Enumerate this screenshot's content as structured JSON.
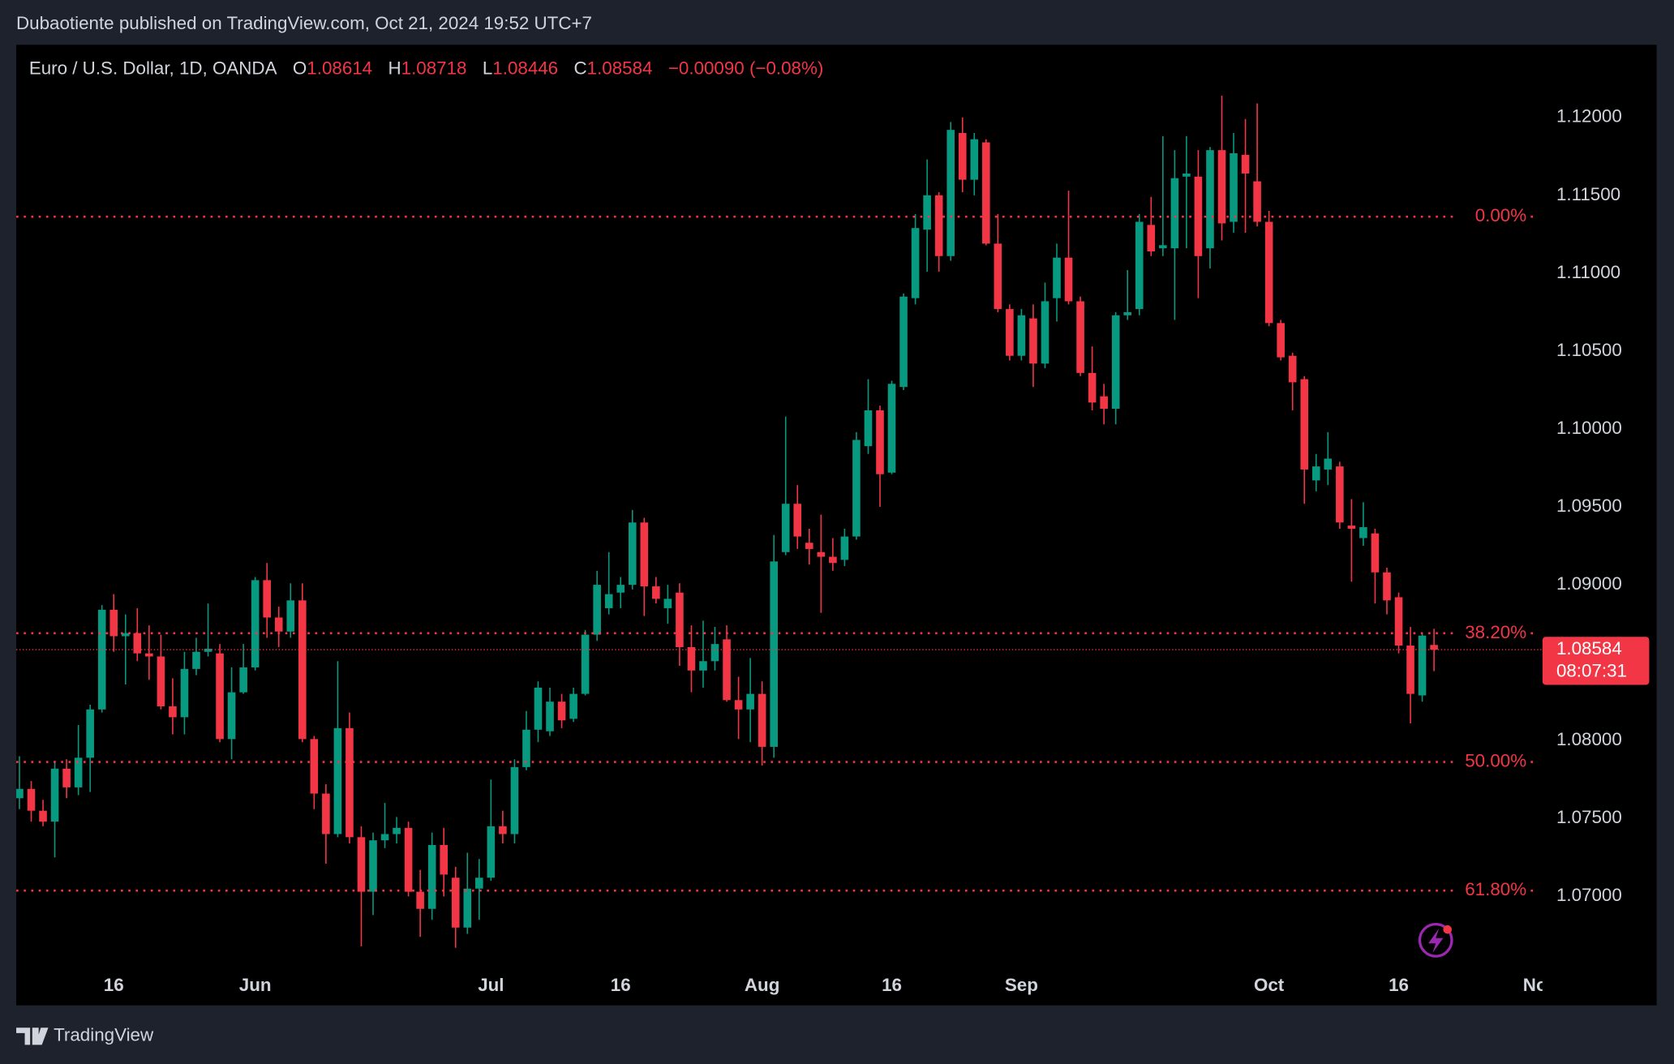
{
  "header": {
    "publisher": "Dubaotiente published on TradingView.com, Oct 21, 2024 19:52 UTC+7",
    "symbol": "Euro / U.S. Dollar, 1D, OANDA",
    "ohlc_labels": [
      "O",
      "H",
      "L",
      "C"
    ],
    "change": "−0.00090 (−0.08%)",
    "countdown": "08:07:31"
  },
  "footer": {
    "brand": "TradingView"
  },
  "chart_data": {
    "type": "candlestick",
    "up_color": "#089981",
    "down_color": "#f23645",
    "open": [
      1.0763,
      1.0769,
      1.0755,
      1.0748,
      1.0782,
      1.077,
      1.0789,
      1.082,
      1.0884,
      1.0867,
      1.0869,
      1.0856,
      1.0854,
      1.0822,
      1.0815,
      1.0846,
      1.0857,
      1.0856,
      1.0801,
      1.0831,
      1.0847,
      1.0903,
      1.0879,
      1.087,
      1.089,
      1.0801,
      1.0766,
      1.074,
      1.0808,
      1.0738,
      1.0703,
      1.0736,
      1.074,
      1.0744,
      1.0703,
      1.0692,
      1.0733,
      1.0712,
      1.068,
      1.0705,
      1.0712,
      1.0745,
      1.074,
      1.0783,
      1.0807,
      1.0806,
      1.0825,
      1.0814,
      1.083,
      1.0868,
      1.0885,
      1.0895,
      1.09,
      1.094,
      1.0899,
      1.0885,
      1.0895,
      1.086,
      1.0845,
      1.0851,
      1.0865,
      1.0826,
      1.082,
      1.083,
      1.0796,
      1.0921,
      1.0952,
      1.0927,
      1.0921,
      1.0918,
      1.0916,
      1.0931,
      1.0989,
      1.1012,
      1.0972,
      1.1027,
      1.1084,
      1.1128,
      1.115,
      1.1111,
      1.119,
      1.116,
      1.1184,
      1.1119,
      1.1077,
      1.1047,
      1.1071,
      1.1042,
      1.1084,
      1.111,
      1.1082,
      1.1036,
      1.1021,
      1.1013,
      1.1073,
      1.1077,
      1.1131,
      1.1116,
      1.1116,
      1.1162,
      1.1162,
      1.1116,
      1.1179,
      1.1133,
      1.1176,
      1.1159,
      1.1133,
      1.1068,
      1.1047,
      1.1032,
      1.0967,
      1.0974,
      1.0976,
      1.0938,
      1.093,
      1.0933,
      1.0908,
      1.0892,
      1.0861,
      1.0829,
      1.08614
    ],
    "high": [
      1.079,
      1.0774,
      1.0762,
      1.0787,
      1.0788,
      1.081,
      1.0823,
      1.0887,
      1.0894,
      1.0881,
      1.0885,
      1.0874,
      1.0868,
      1.084,
      1.0857,
      1.0866,
      1.0888,
      1.0862,
      1.0847,
      1.0862,
      1.0905,
      1.0914,
      1.0886,
      1.0901,
      1.0901,
      1.0803,
      1.0772,
      1.0851,
      1.0818,
      1.0745,
      1.0741,
      1.076,
      1.0751,
      1.0748,
      1.0717,
      1.0741,
      1.0744,
      1.0719,
      1.0728,
      1.0724,
      1.0775,
      1.0755,
      1.0788,
      1.0819,
      1.0838,
      1.0834,
      1.083,
      1.0834,
      1.0871,
      1.0909,
      1.0921,
      1.0905,
      1.0948,
      1.0943,
      1.0905,
      1.09,
      1.0901,
      1.0874,
      1.0877,
      1.0873,
      1.0874,
      1.0841,
      1.0853,
      1.0838,
      1.0932,
      1.1008,
      1.0964,
      1.0936,
      1.0945,
      1.093,
      1.0936,
      1.0998,
      1.1032,
      1.1015,
      1.1031,
      1.1087,
      1.1138,
      1.1173,
      1.1152,
      1.1197,
      1.12,
      1.119,
      1.1186,
      1.1138,
      1.108,
      1.1077,
      1.108,
      1.1094,
      1.1119,
      1.1153,
      1.1085,
      1.1053,
      1.1029,
      1.1075,
      1.1102,
      1.1138,
      1.1149,
      1.1188,
      1.1179,
      1.1188,
      1.1179,
      1.1181,
      1.1214,
      1.119,
      1.1199,
      1.1209,
      1.114,
      1.107,
      1.1049,
      1.1034,
      1.0984,
      1.0998,
      1.0979,
      1.0955,
      1.0953,
      1.0936,
      1.0911,
      1.0895,
      1.0873,
      1.0869,
      1.08718
    ],
    "low": [
      1.0756,
      1.0748,
      1.0745,
      1.0725,
      1.0763,
      1.0765,
      1.0767,
      1.0818,
      1.0857,
      1.0836,
      1.0851,
      1.0839,
      1.082,
      1.0804,
      1.0804,
      1.0842,
      1.0854,
      1.0799,
      1.0788,
      1.083,
      1.0845,
      1.0866,
      1.086,
      1.0866,
      1.0799,
      1.0756,
      1.0721,
      1.0738,
      1.0734,
      1.0668,
      1.0688,
      1.0731,
      1.0734,
      1.07,
      1.0674,
      1.0685,
      1.07,
      1.0667,
      1.0676,
      1.0685,
      1.071,
      1.0734,
      1.0734,
      1.0781,
      1.0799,
      1.0803,
      1.0808,
      1.0812,
      1.0829,
      1.0864,
      1.0881,
      1.0885,
      1.0897,
      1.088,
      1.0888,
      1.0875,
      1.0848,
      1.0831,
      1.0834,
      1.0845,
      1.0825,
      1.0801,
      1.0799,
      1.0784,
      1.0789,
      1.0919,
      1.0923,
      1.0913,
      1.0882,
      1.0909,
      1.0912,
      1.0929,
      1.0984,
      1.095,
      1.0971,
      1.1025,
      1.108,
      1.1101,
      1.1101,
      1.1108,
      1.1152,
      1.115,
      1.1118,
      1.1075,
      1.1044,
      1.1044,
      1.1027,
      1.1039,
      1.1069,
      1.108,
      1.1034,
      1.1012,
      1.1003,
      1.1003,
      1.107,
      1.1073,
      1.1111,
      1.1111,
      1.107,
      1.1116,
      1.1084,
      1.1103,
      1.1121,
      1.1126,
      1.1126,
      1.113,
      1.1066,
      1.1044,
      1.1012,
      1.0952,
      1.096,
      1.0964,
      1.0936,
      1.0902,
      1.0925,
      1.0888,
      1.0881,
      1.0856,
      1.0811,
      1.0825,
      1.08446
    ],
    "close": [
      1.0769,
      1.0755,
      1.0748,
      1.0782,
      1.077,
      1.0789,
      1.082,
      1.0884,
      1.0867,
      1.0869,
      1.0856,
      1.0854,
      1.0822,
      1.0815,
      1.0846,
      1.0857,
      1.0859,
      1.0801,
      1.0831,
      1.0847,
      1.0903,
      1.0879,
      1.087,
      1.089,
      1.0801,
      1.0766,
      1.074,
      1.0808,
      1.0738,
      1.0703,
      1.0736,
      1.074,
      1.0744,
      1.0703,
      1.0692,
      1.0733,
      1.0714,
      1.068,
      1.0705,
      1.0712,
      1.0745,
      1.074,
      1.0783,
      1.0807,
      1.0834,
      1.0825,
      1.0813,
      1.083,
      1.0868,
      1.09,
      1.0894,
      1.09,
      1.094,
      1.0899,
      1.0891,
      1.0891,
      1.086,
      1.0845,
      1.0851,
      1.0862,
      1.0826,
      1.082,
      1.083,
      1.0796,
      1.0915,
      1.0952,
      1.0931,
      1.0923,
      1.0918,
      1.0914,
      1.0931,
      1.0993,
      1.1012,
      1.0971,
      1.1029,
      1.1085,
      1.1129,
      1.115,
      1.1111,
      1.1192,
      1.116,
      1.1186,
      1.1119,
      1.1077,
      1.1047,
      1.1073,
      1.1042,
      1.1082,
      1.111,
      1.1082,
      1.1036,
      1.1017,
      1.1013,
      1.1073,
      1.1075,
      1.1133,
      1.1114,
      1.1118,
      1.1161,
      1.1164,
      1.1111,
      1.1179,
      1.1132,
      1.1177,
      1.1164,
      1.1133,
      1.1068,
      1.1046,
      1.103,
      1.0974,
      1.0976,
      1.0981,
      1.094,
      1.0936,
      1.0937,
      1.0908,
      1.089,
      1.0861,
      1.083,
      1.08674,
      1.08584
    ],
    "xlim": [
      -0.27,
      129.2
    ],
    "xticks": [
      {
        "value": 8,
        "label": "16"
      },
      {
        "value": 20,
        "label": "Jun"
      },
      {
        "value": 40,
        "label": "Jul"
      },
      {
        "value": 51,
        "label": "16"
      },
      {
        "value": 63,
        "label": "Aug"
      },
      {
        "value": 74,
        "label": "16"
      },
      {
        "value": 85,
        "label": "Sep"
      },
      {
        "value": 106,
        "label": "Oct"
      },
      {
        "value": 117,
        "label": "16"
      },
      {
        "value": 129,
        "label": "Nov"
      }
    ],
    "ylim": [
      1.06301,
      1.12466
    ],
    "yticks": [
      {
        "value": 1.12,
        "label": "1.12000"
      },
      {
        "value": 1.115,
        "label": "1.11500"
      },
      {
        "value": 1.11,
        "label": "1.11000"
      },
      {
        "value": 1.105,
        "label": "1.10500"
      },
      {
        "value": 1.1,
        "label": "1.10000"
      },
      {
        "value": 1.095,
        "label": "1.09500"
      },
      {
        "value": 1.09,
        "label": "1.09000"
      },
      {
        "value": 1.085,
        "label": "1.08500"
      },
      {
        "value": 1.08,
        "label": "1.08000"
      },
      {
        "value": 1.075,
        "label": "1.07500"
      },
      {
        "value": 1.07,
        "label": "1.07000"
      }
    ],
    "fib_levels": [
      {
        "value": 1.11363,
        "label": "0.00%"
      },
      {
        "value": 1.08689,
        "label": "38.20%"
      },
      {
        "value": 1.07863,
        "label": "50.00%"
      },
      {
        "value": 1.07037,
        "label": "61.80%"
      }
    ],
    "fib_color": "#f23645"
  }
}
